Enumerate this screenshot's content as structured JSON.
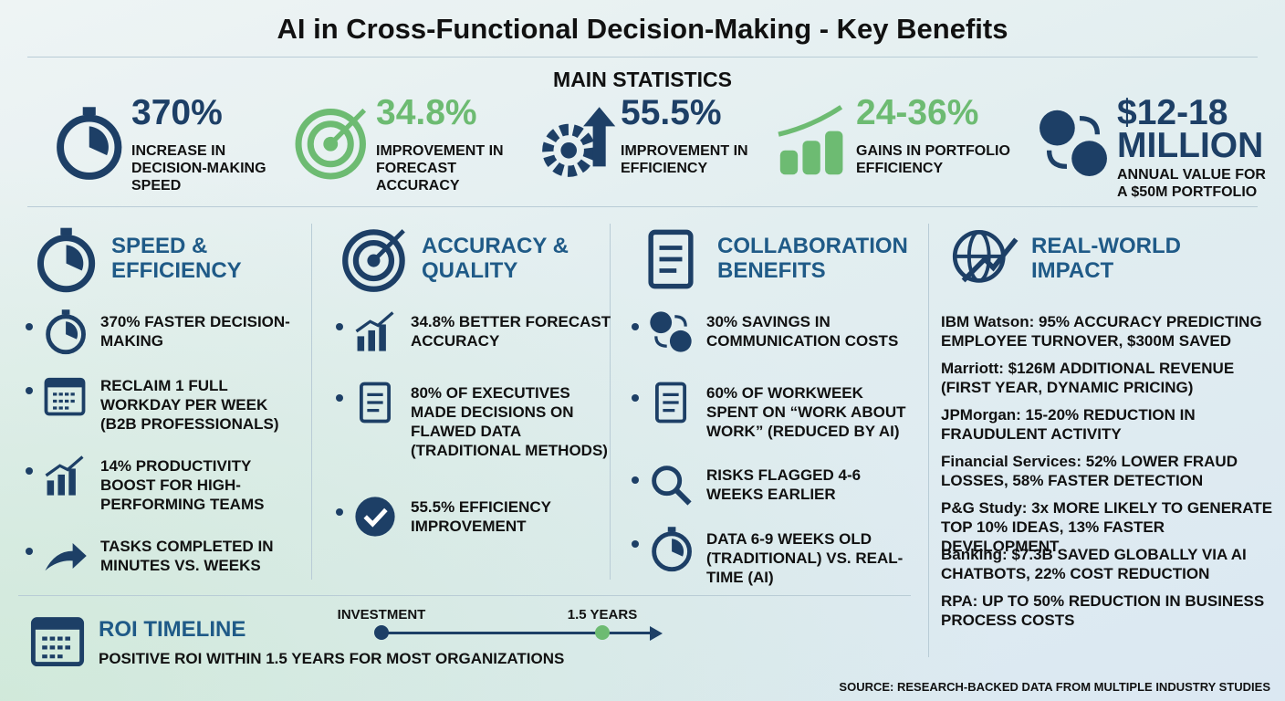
{
  "title": "AI in Cross-Functional Decision-Making - Key Benefits",
  "main_statistics": {
    "heading": "MAIN STATISTICS",
    "items": [
      {
        "value": "370%",
        "label": "INCREASE IN DECISION-MAKING SPEED"
      },
      {
        "value": "34.8%",
        "label": "IMPROVEMENT IN FORECAST ACCURACY"
      },
      {
        "value": "55.5%",
        "label": "IMPROVEMENT IN EFFICIENCY"
      },
      {
        "value": "24-36%",
        "label": "GAINS IN PORTFOLIO EFFICIENCY"
      },
      {
        "value": "$12-18 MILLION",
        "label": "ANNUAL VALUE FOR A $50M PORTFOLIO"
      }
    ]
  },
  "sections": [
    {
      "title": "SPEED & EFFICIENCY",
      "items": [
        "370% FASTER DECISION-MAKING",
        "RECLAIM 1 FULL WORKDAY PER WEEK (B2B PROFESSIONALS)",
        "14% PRODUCTIVITY BOOST FOR HIGH-PERFORMING TEAMS",
        "TASKS COMPLETED IN MINUTES VS. WEEKS"
      ]
    },
    {
      "title": "ACCURACY & QUALITY",
      "items": [
        "34.8% BETTER FORECAST ACCURACY",
        "80% OF EXECUTIVES MADE DECISIONS ON FLAWED DATA (TRADITIONAL METHODS)",
        "55.5% EFFICIENCY IMPROVEMENT"
      ]
    },
    {
      "title": "COLLABORATION BENEFITS",
      "items": [
        "30% SAVINGS IN COMMUNICATION COSTS",
        "60% OF WORKWEEK SPENT ON “WORK ABOUT WORK” (REDUCED BY AI)",
        "RISKS FLAGGED 4-6 WEEKS EARLIER",
        "DATA 6-9 WEEKS OLD (TRADITIONAL) VS. REAL-TIME (AI)"
      ]
    },
    {
      "title": "REAL-WORLD IMPACT",
      "items": [
        "IBM Watson: 95% ACCURACY PREDICTING EMPLOYEE TURNOVER, $300M SAVED",
        "Marriott: $126M ADDITIONAL REVENUE (FIRST YEAR, DYNAMIC PRICING)",
        "JPMorgan: 15-20% REDUCTION IN FRAUDULENT ACTIVITY",
        "Financial Services: 52% LOWER FRAUD LOSSES, 58% FASTER DETECTION",
        "P&G Study: 3x MORE LIKELY TO GENERATE TOP 10% IDEAS, 13% FASTER DEVELOPMENT",
        "Banking: $7.3B SAVED GLOBALLY VIA AI CHATBOTS, 22% COST REDUCTION",
        "RPA: UP TO 50% REDUCTION IN BUSINESS PROCESS COSTS"
      ]
    }
  ],
  "roi": {
    "title": "ROI TIMELINE",
    "text": "POSITIVE ROI WITHIN 1.5 YEARS FOR MOST ORGANIZATIONS",
    "start": "INVESTMENT",
    "end": "1.5 YEARS"
  },
  "source": "SOURCE: RESEARCH-BACKED DATA FROM MULTIPLE INDUSTRY STUDIES"
}
